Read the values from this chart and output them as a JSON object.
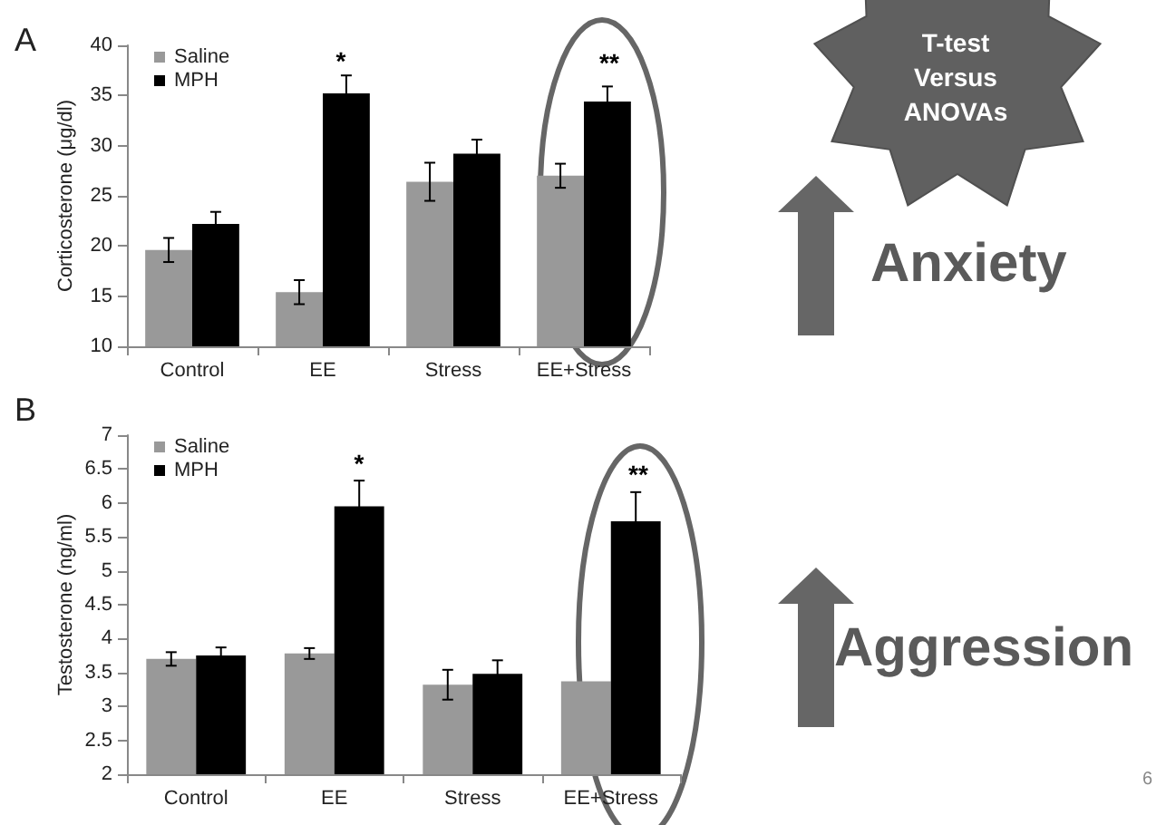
{
  "chart_data": [
    {
      "type": "bar",
      "ylabel": "Corticosterone (μg/dl)",
      "categories": [
        "Control",
        "EE",
        "Stress",
        "EE+Stress"
      ],
      "ylim": [
        10,
        40
      ],
      "yticks": [
        10,
        15,
        20,
        25,
        30,
        35,
        40
      ],
      "legend": "top left",
      "grid": false,
      "series": [
        {
          "name": "Saline",
          "color": "#999999",
          "values": [
            19.6,
            15.4,
            26.4,
            27.0
          ],
          "errors": [
            1.2,
            1.2,
            1.9,
            1.2
          ]
        },
        {
          "name": "MPH",
          "color": "#000000",
          "values": [
            22.2,
            35.2,
            29.2,
            34.4
          ],
          "errors": [
            1.2,
            1.8,
            1.4,
            1.5
          ]
        }
      ],
      "annotations": [
        "A",
        "T-test\nVersus\nANOVAs",
        "Anxiety",
        "*",
        "**"
      ]
    },
    {
      "type": "bar",
      "ylabel": "Testosterone (ng/ml)",
      "categories": [
        "Control",
        "EE",
        "Stress",
        "EE+Stress"
      ],
      "ylim": [
        2,
        7
      ],
      "yticks": [
        2,
        {
          "value": 2.5,
          "label": "2.5"
        },
        3,
        {
          "value": 3.5,
          "label": "3.5"
        },
        4,
        {
          "value": 4.5,
          "label": "4.5"
        },
        5,
        {
          "value": 5.5,
          "label": "5.5"
        },
        6,
        {
          "value": 6.5,
          "label": "6.5"
        },
        7
      ],
      "legend": "top left",
      "grid": false,
      "series": [
        {
          "name": "Saline",
          "color": "#999999",
          "values": [
            3.7,
            3.78,
            3.32,
            3.37
          ],
          "errors": [
            0.1,
            0.08,
            0.22,
            null
          ]
        },
        {
          "name": "MPH",
          "color": "#000000",
          "values": [
            3.75,
            5.95,
            3.48,
            5.73
          ],
          "errors": [
            0.12,
            0.38,
            0.2,
            0.43
          ]
        }
      ],
      "annotations": [
        "B",
        "Aggression",
        "6",
        "*",
        "**"
      ]
    }
  ]
}
